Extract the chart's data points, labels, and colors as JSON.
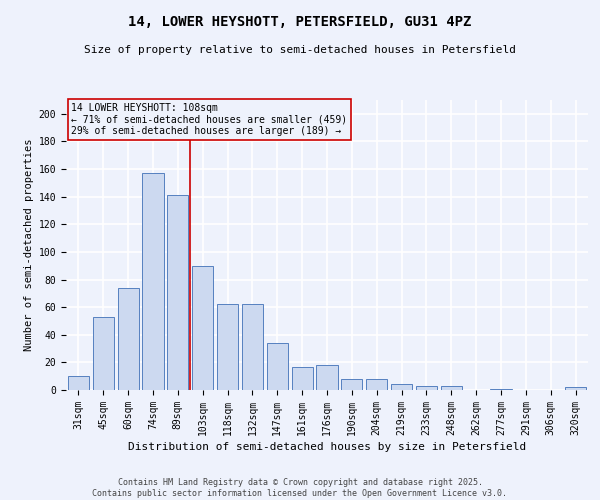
{
  "title1": "14, LOWER HEYSHOTT, PETERSFIELD, GU31 4PZ",
  "title2": "Size of property relative to semi-detached houses in Petersfield",
  "xlabel": "Distribution of semi-detached houses by size in Petersfield",
  "ylabel": "Number of semi-detached properties",
  "categories": [
    "31sqm",
    "45sqm",
    "60sqm",
    "74sqm",
    "89sqm",
    "103sqm",
    "118sqm",
    "132sqm",
    "147sqm",
    "161sqm",
    "176sqm",
    "190sqm",
    "204sqm",
    "219sqm",
    "233sqm",
    "248sqm",
    "262sqm",
    "277sqm",
    "291sqm",
    "306sqm",
    "320sqm"
  ],
  "values": [
    10,
    53,
    74,
    157,
    141,
    90,
    62,
    62,
    34,
    17,
    18,
    8,
    8,
    4,
    3,
    3,
    0,
    1,
    0,
    0,
    2
  ],
  "bar_color": "#ccd9f0",
  "bar_edge_color": "#5580c0",
  "property_label": "14 LOWER HEYSHOTT: 108sqm",
  "annotation_line1": "← 71% of semi-detached houses are smaller (459)",
  "annotation_line2": "29% of semi-detached houses are larger (189) →",
  "vline_color": "#cc0000",
  "vline_x": 4.5,
  "annotation_box_color": "#cc0000",
  "ylim": [
    0,
    210
  ],
  "yticks": [
    0,
    20,
    40,
    60,
    80,
    100,
    120,
    140,
    160,
    180,
    200
  ],
  "footer1": "Contains HM Land Registry data © Crown copyright and database right 2025.",
  "footer2": "Contains public sector information licensed under the Open Government Licence v3.0.",
  "background_color": "#eef2fc",
  "grid_color": "#ffffff",
  "title_fontsize": 10,
  "subtitle_fontsize": 8,
  "ylabel_fontsize": 7.5,
  "xlabel_fontsize": 8,
  "tick_fontsize": 7,
  "annot_fontsize": 7,
  "footer_fontsize": 6
}
